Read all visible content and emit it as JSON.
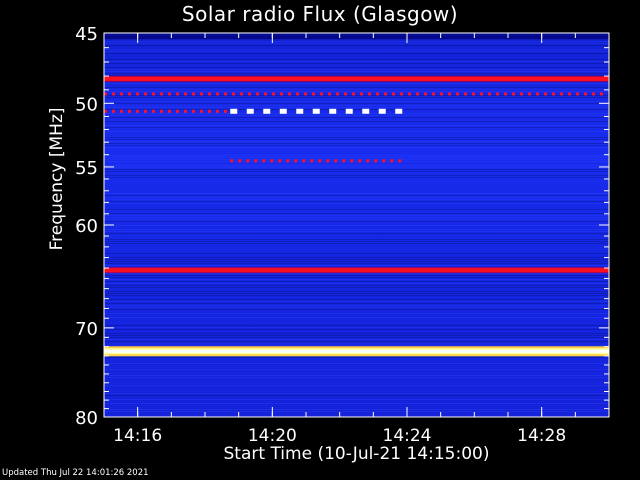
{
  "chart_data": {
    "type": "heatmap",
    "title": "Solar radio Flux (Glasgow)",
    "xlabel": "Start Time (10-Jul-21 14:15:00)",
    "ylabel": "Frequency [MHz]",
    "xlim": [
      "14:15:00",
      "14:30:00"
    ],
    "ylim": [
      45,
      80
    ],
    "y_scale": "log",
    "y_inverted": true,
    "x_ticks": [
      "14:16",
      "14:20",
      "14:24",
      "14:28"
    ],
    "y_ticks": [
      45,
      50,
      55,
      60,
      70,
      80
    ],
    "colormap": [
      "#000060",
      "#1010ff",
      "#c00040",
      "#ff0000",
      "#ffff80",
      "#ffffff"
    ],
    "background_level": "blue",
    "bands": [
      {
        "freq_mhz": 48.2,
        "intensity": "red",
        "pattern": "continuous"
      },
      {
        "freq_mhz": 49.3,
        "intensity": "red",
        "pattern": "dotted"
      },
      {
        "freq_mhz": 50.6,
        "intensity": "red",
        "pattern": "dotted",
        "time_range": [
          "14:15:00",
          "14:18:45"
        ]
      },
      {
        "freq_mhz": 50.6,
        "intensity": "white",
        "pattern": "dotted",
        "time_range": [
          "14:18:45",
          "14:23:50"
        ]
      },
      {
        "freq_mhz": 54.5,
        "intensity": "red",
        "pattern": "dotted",
        "time_range": [
          "14:18:45",
          "14:23:50"
        ]
      },
      {
        "freq_mhz": 64.2,
        "intensity": "red",
        "pattern": "continuous"
      },
      {
        "freq_mhz": 72.5,
        "intensity": "white",
        "pattern": "continuous"
      }
    ]
  },
  "footer": "Updated Thu Jul 22 14:01:26 2021"
}
